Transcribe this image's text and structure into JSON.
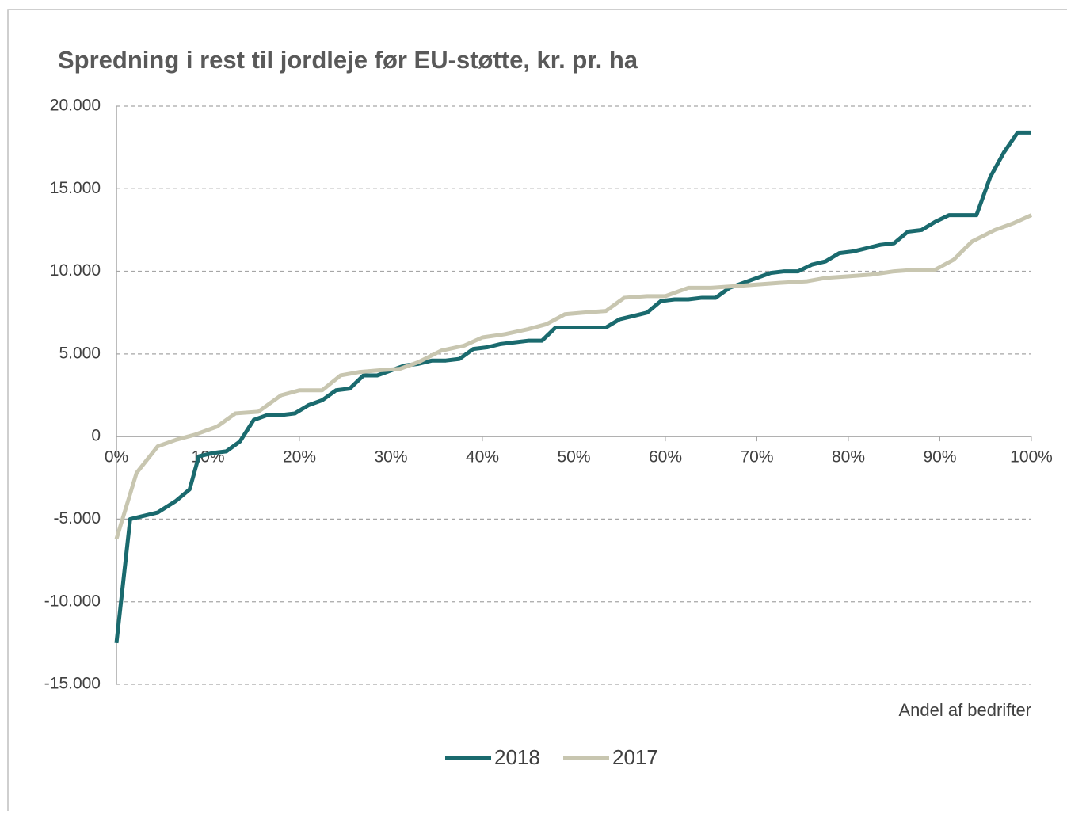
{
  "chart_data": {
    "type": "line",
    "title": "Spredning i rest til jordleje før EU-støtte, kr. pr. ha",
    "x_label": "Andel af bedrifter",
    "xlim": [
      0,
      100
    ],
    "xticks": [
      {
        "value": 0,
        "label": "0%"
      },
      {
        "value": 10,
        "label": "10%"
      },
      {
        "value": 20,
        "label": "20%"
      },
      {
        "value": 30,
        "label": "30%"
      },
      {
        "value": 40,
        "label": "40%"
      },
      {
        "value": 50,
        "label": "50%"
      },
      {
        "value": 60,
        "label": "60%"
      },
      {
        "value": 70,
        "label": "70%"
      },
      {
        "value": 80,
        "label": "80%"
      },
      {
        "value": 90,
        "label": "90%"
      },
      {
        "value": 100,
        "label": "100%"
      }
    ],
    "ylim": [
      -15000,
      20000
    ],
    "yticks": [
      {
        "value": -15000,
        "label": "-15.000"
      },
      {
        "value": -10000,
        "label": "-10.000"
      },
      {
        "value": -5000,
        "label": "-5.000"
      },
      0,
      {
        "value": 5000,
        "label": "5.000"
      },
      {
        "value": 10000,
        "label": "10.000"
      },
      {
        "value": 15000,
        "label": "15.000"
      },
      {
        "value": 20000,
        "label": "20.000"
      }
    ],
    "grid": true,
    "legend": "bottom",
    "series": [
      {
        "name": "2018",
        "color": "#1a6a6e",
        "x": [
          0,
          1.5,
          4.5,
          6.5,
          8,
          9,
          10.5,
          12,
          13.5,
          15,
          16.5,
          18,
          19.5,
          21,
          22.5,
          24,
          25.5,
          27,
          28.5,
          30,
          31.5,
          33,
          34.5,
          36,
          37.5,
          39,
          40.5,
          42,
          43.5,
          45,
          46.5,
          48,
          50,
          52,
          53.5,
          55,
          56.5,
          58,
          59.5,
          61,
          62.5,
          64,
          65.5,
          67,
          68.5,
          70,
          71.5,
          73,
          74.5,
          76,
          77.5,
          79,
          80.5,
          82,
          83.5,
          85,
          86.5,
          88,
          89.5,
          91,
          92.5,
          94,
          95.5,
          97,
          98.5,
          100
        ],
        "values": [
          -12500,
          -5000,
          -4600,
          -3900,
          -3200,
          -1200,
          -1000,
          -900,
          -300,
          1000,
          1300,
          1300,
          1400,
          1900,
          2200,
          2800,
          2900,
          3700,
          3700,
          4000,
          4300,
          4400,
          4600,
          4600,
          4700,
          5300,
          5400,
          5600,
          5700,
          5800,
          5800,
          6600,
          6600,
          6600,
          6600,
          7100,
          7300,
          7500,
          8200,
          8300,
          8300,
          8400,
          8400,
          9000,
          9300,
          9600,
          9900,
          10000,
          10000,
          10400,
          10600,
          11100,
          11200,
          11400,
          11600,
          11700,
          12400,
          12500,
          13000,
          13400,
          13400,
          13400,
          15700,
          17200,
          18400,
          18400
        ]
      },
      {
        "name": "2017",
        "color": "#c8c6b0",
        "x": [
          0,
          2.2,
          4.5,
          6.5,
          8.5,
          11,
          13,
          15.5,
          18,
          20,
          22.5,
          24.5,
          26.5,
          28.5,
          31,
          33,
          35.5,
          38,
          40,
          42.5,
          45,
          47,
          49,
          51,
          53.5,
          55.5,
          58,
          60,
          62.5,
          65,
          67.5,
          70,
          72.5,
          75.5,
          77.5,
          80,
          82.5,
          85,
          87.5,
          89.5,
          91.5,
          93.5,
          96,
          98,
          100
        ],
        "values": [
          -6200,
          -2200,
          -600,
          -200,
          100,
          600,
          1400,
          1500,
          2500,
          2800,
          2800,
          3700,
          3900,
          4000,
          4100,
          4500,
          5200,
          5500,
          6000,
          6200,
          6500,
          6800,
          7400,
          7500,
          7600,
          8400,
          8500,
          8500,
          9000,
          9000,
          9100,
          9200,
          9300,
          9400,
          9600,
          9700,
          9800,
          10000,
          10100,
          10100,
          10700,
          11800,
          12500,
          12900,
          13400
        ]
      }
    ]
  }
}
